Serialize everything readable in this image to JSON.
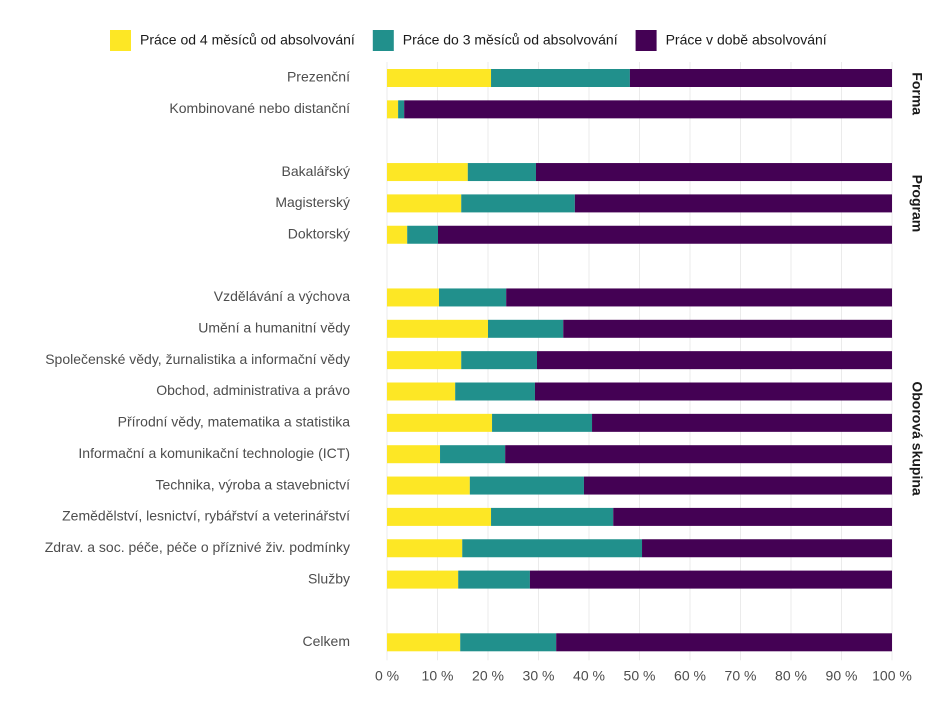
{
  "chart_data": [
    {
      "type": "bar",
      "orientation": "horizontal",
      "stacked": true,
      "facet": "Forma",
      "categories": [
        "Prezenční",
        "Kombinované nebo distanční"
      ],
      "series": [
        {
          "name": "Práce od 4 měsíců od absolvování",
          "color": "#fde725",
          "values": [
            20.6,
            2.2
          ]
        },
        {
          "name": "Práce do 3 měsíců od absolvování",
          "color": "#21908c",
          "values": [
            27.5,
            1.2
          ]
        },
        {
          "name": "Práce v době absolvování",
          "color": "#440154",
          "values": [
            51.9,
            96.6
          ]
        }
      ],
      "xlim": [
        0,
        100
      ]
    },
    {
      "type": "bar",
      "orientation": "horizontal",
      "stacked": true,
      "facet": "Program",
      "categories": [
        "Bakalářský",
        "Magisterský",
        "Doktorský"
      ],
      "series": [
        {
          "color": "#fde725",
          "values": [
            16.0,
            14.7,
            4.0
          ]
        },
        {
          "color": "#21908c",
          "values": [
            13.5,
            22.5,
            6.1
          ]
        },
        {
          "color": "#440154",
          "values": [
            70.5,
            62.8,
            89.9
          ]
        }
      ],
      "xlim": [
        0,
        100
      ]
    },
    {
      "type": "bar",
      "orientation": "horizontal",
      "stacked": true,
      "facet": "Oborová skupina",
      "categories": [
        "Vzdělávání a výchova",
        "Umění a humanitní vědy",
        "Společenské vědy, žurnalistika a informační vědy",
        "Obchod, administrativa a právo",
        "Přírodní vědy, matematika a statistika",
        "Informační a komunikační technologie (ICT)",
        "Technika, výroba a stavebnictví",
        "Zemědělství, lesnictví, rybářství a veterinářství",
        "Zdrav. a soc. péče, péče o příznivé živ. podmínky",
        "Služby"
      ],
      "series": [
        {
          "color": "#fde725",
          "values": [
            10.3,
            20.0,
            14.7,
            13.5,
            20.8,
            10.5,
            16.4,
            20.6,
            14.9,
            14.1
          ]
        },
        {
          "color": "#21908c",
          "values": [
            13.3,
            14.9,
            15.0,
            15.8,
            19.8,
            12.9,
            22.6,
            24.2,
            35.6,
            14.2
          ]
        },
        {
          "color": "#440154",
          "values": [
            76.4,
            65.1,
            70.3,
            70.7,
            59.4,
            76.6,
            61.0,
            55.2,
            49.5,
            71.7
          ]
        }
      ],
      "xlim": [
        0,
        100
      ]
    },
    {
      "type": "bar",
      "orientation": "horizontal",
      "stacked": true,
      "categories": [
        "Celkem"
      ],
      "series": [
        {
          "color": "#fde725",
          "values": [
            14.5
          ]
        },
        {
          "color": "#21908c",
          "values": [
            19.0
          ]
        },
        {
          "color": "#440154",
          "values": [
            66.5
          ]
        }
      ],
      "xlim": [
        0,
        100
      ],
      "xticks": [
        {
          "value": 0,
          "label": "0 %"
        },
        {
          "value": 10,
          "label": "10 %"
        },
        {
          "value": 20,
          "label": "20 %"
        },
        {
          "value": 30,
          "label": "30 %"
        },
        {
          "value": 40,
          "label": "40 %"
        },
        {
          "value": 50,
          "label": "50 %"
        },
        {
          "value": 60,
          "label": "60 %"
        },
        {
          "value": 70,
          "label": "70 %"
        },
        {
          "value": 80,
          "label": "80 %"
        },
        {
          "value": 90,
          "label": "90 %"
        },
        {
          "value": 100,
          "label": "100 %"
        }
      ],
      "grid": true
    }
  ]
}
